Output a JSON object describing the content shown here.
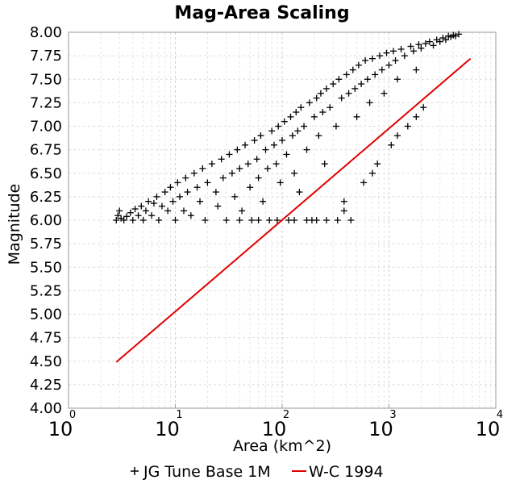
{
  "chart_data": {
    "type": "scatter",
    "title": "Mag-Area Scaling",
    "xlabel": "Area (km^2)",
    "ylabel": "Magnitude",
    "x_scale": "log",
    "xlim": [
      1,
      10000
    ],
    "ylim": [
      4.0,
      8.0
    ],
    "x_ticks": [
      {
        "base": "10",
        "exp": "0",
        "value": 1
      },
      {
        "base": "10",
        "exp": "1",
        "value": 10
      },
      {
        "base": "10",
        "exp": "2",
        "value": 100
      },
      {
        "base": "10",
        "exp": "3",
        "value": 1000
      },
      {
        "base": "10",
        "exp": "4",
        "value": 10000
      }
    ],
    "y_ticks": [
      "4.00",
      "4.25",
      "4.50",
      "4.75",
      "5.00",
      "5.25",
      "5.50",
      "5.75",
      "6.00",
      "6.25",
      "6.50",
      "6.75",
      "7.00",
      "7.25",
      "7.50",
      "7.75",
      "8.00"
    ],
    "grid": true,
    "legend_position": "bottom",
    "series": [
      {
        "name": "JG Tune Base 1M",
        "type": "scatter",
        "marker": "plus",
        "color": "#000000",
        "points": [
          [
            2.8,
            6.0
          ],
          [
            2.9,
            6.05
          ],
          [
            3.0,
            6.1
          ],
          [
            3.1,
            6.02
          ],
          [
            3.3,
            6.0
          ],
          [
            3.5,
            6.04
          ],
          [
            3.8,
            6.08
          ],
          [
            4.0,
            6.0
          ],
          [
            4.2,
            6.12
          ],
          [
            4.5,
            6.05
          ],
          [
            4.8,
            6.15
          ],
          [
            5.0,
            6.0
          ],
          [
            5.3,
            6.1
          ],
          [
            5.6,
            6.2
          ],
          [
            6.0,
            6.05
          ],
          [
            6.3,
            6.18
          ],
          [
            6.7,
            6.25
          ],
          [
            7.0,
            6.0
          ],
          [
            7.5,
            6.15
          ],
          [
            8.0,
            6.3
          ],
          [
            8.5,
            6.1
          ],
          [
            9.0,
            6.35
          ],
          [
            9.5,
            6.2
          ],
          [
            10,
            6.0
          ],
          [
            10.5,
            6.4
          ],
          [
            11,
            6.25
          ],
          [
            12,
            6.1
          ],
          [
            12.5,
            6.45
          ],
          [
            13,
            6.3
          ],
          [
            14,
            6.05
          ],
          [
            15,
            6.5
          ],
          [
            16,
            6.35
          ],
          [
            17,
            6.2
          ],
          [
            18,
            6.55
          ],
          [
            19,
            6.0
          ],
          [
            20,
            6.4
          ],
          [
            22,
            6.6
          ],
          [
            24,
            6.3
          ],
          [
            25,
            6.15
          ],
          [
            27,
            6.65
          ],
          [
            28,
            6.45
          ],
          [
            30,
            6.0
          ],
          [
            32,
            6.7
          ],
          [
            34,
            6.5
          ],
          [
            36,
            6.25
          ],
          [
            38,
            6.75
          ],
          [
            40,
            6.55
          ],
          [
            42,
            6.1
          ],
          [
            45,
            6.8
          ],
          [
            48,
            6.6
          ],
          [
            50,
            6.35
          ],
          [
            52,
            6.0
          ],
          [
            55,
            6.85
          ],
          [
            58,
            6.65
          ],
          [
            60,
            6.45
          ],
          [
            63,
            6.9
          ],
          [
            66,
            6.2
          ],
          [
            70,
            6.75
          ],
          [
            73,
            6.55
          ],
          [
            76,
            6.0
          ],
          [
            80,
            6.95
          ],
          [
            84,
            6.8
          ],
          [
            88,
            6.6
          ],
          [
            92,
            7.0
          ],
          [
            96,
            6.4
          ],
          [
            100,
            6.85
          ],
          [
            105,
            7.05
          ],
          [
            110,
            6.7
          ],
          [
            115,
            6.0
          ],
          [
            120,
            7.1
          ],
          [
            125,
            6.9
          ],
          [
            130,
            6.5
          ],
          [
            135,
            7.15
          ],
          [
            140,
            6.95
          ],
          [
            145,
            6.3
          ],
          [
            150,
            7.2
          ],
          [
            160,
            7.0
          ],
          [
            170,
            6.75
          ],
          [
            180,
            7.25
          ],
          [
            190,
            6.0
          ],
          [
            200,
            7.1
          ],
          [
            210,
            7.3
          ],
          [
            220,
            6.9
          ],
          [
            230,
            7.35
          ],
          [
            240,
            7.15
          ],
          [
            250,
            6.6
          ],
          [
            260,
            7.4
          ],
          [
            280,
            7.2
          ],
          [
            300,
            7.45
          ],
          [
            320,
            7.0
          ],
          [
            340,
            7.5
          ],
          [
            360,
            7.3
          ],
          [
            380,
            6.2
          ],
          [
            400,
            7.55
          ],
          [
            420,
            7.35
          ],
          [
            440,
            6.0
          ],
          [
            460,
            7.6
          ],
          [
            480,
            7.4
          ],
          [
            500,
            7.1
          ],
          [
            520,
            7.65
          ],
          [
            550,
            7.45
          ],
          [
            580,
            6.4
          ],
          [
            600,
            7.7
          ],
          [
            630,
            7.5
          ],
          [
            660,
            7.25
          ],
          [
            700,
            7.72
          ],
          [
            740,
            7.55
          ],
          [
            780,
            6.6
          ],
          [
            820,
            7.75
          ],
          [
            860,
            7.6
          ],
          [
            900,
            7.35
          ],
          [
            950,
            7.78
          ],
          [
            1000,
            7.65
          ],
          [
            1050,
            6.8
          ],
          [
            1100,
            7.8
          ],
          [
            1150,
            7.7
          ],
          [
            1200,
            7.5
          ],
          [
            1300,
            7.82
          ],
          [
            1400,
            7.75
          ],
          [
            1500,
            7.0
          ],
          [
            1600,
            7.85
          ],
          [
            1700,
            7.8
          ],
          [
            1800,
            7.6
          ],
          [
            1900,
            7.87
          ],
          [
            2000,
            7.83
          ],
          [
            2100,
            7.2
          ],
          [
            2200,
            7.88
          ],
          [
            2400,
            7.9
          ],
          [
            2600,
            7.86
          ],
          [
            2800,
            7.92
          ],
          [
            3000,
            7.9
          ],
          [
            3200,
            7.94
          ],
          [
            3400,
            7.92
          ],
          [
            3600,
            7.96
          ],
          [
            3800,
            7.95
          ],
          [
            4000,
            7.97
          ],
          [
            4200,
            7.96
          ],
          [
            4500,
            7.98
          ],
          [
            380,
            6.1
          ],
          [
            700,
            6.5
          ],
          [
            1200,
            6.9
          ],
          [
            1800,
            7.1
          ],
          [
            40,
            6.0
          ],
          [
            60,
            6.0
          ],
          [
            90,
            6.0
          ],
          [
            130,
            6.0
          ],
          [
            170,
            6.0
          ],
          [
            210,
            6.0
          ],
          [
            260,
            6.0
          ],
          [
            330,
            6.0
          ]
        ]
      },
      {
        "name": "W-C 1994",
        "type": "line",
        "color": "#e00000",
        "x": [
          2.8,
          5800
        ],
        "y": [
          4.49,
          7.72
        ]
      }
    ]
  }
}
